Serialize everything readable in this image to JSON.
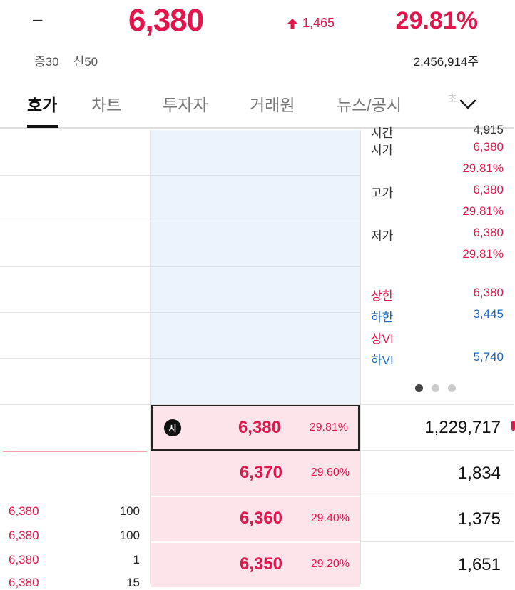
{
  "header": {
    "name": "–",
    "price": "6,380",
    "change": "1,465",
    "change_rate": "29.81%",
    "tags": [
      "증30",
      "신50"
    ],
    "volume": "2,456,914주",
    "accent_color": "#e0174c"
  },
  "tabs": [
    {
      "label": "호가",
      "active": true
    },
    {
      "label": "차트",
      "active": false
    },
    {
      "label": "투자자",
      "active": false
    },
    {
      "label": "거래원",
      "active": false
    },
    {
      "label": "뉴스/공시",
      "active": false
    }
  ],
  "tab_partial": "초",
  "info": {
    "cut_row": {
      "label": "시간",
      "value": "4,915"
    },
    "rows": [
      {
        "label": "시가",
        "value": "6,380",
        "rate": "29.81%"
      },
      {
        "label": "고가",
        "value": "6,380",
        "rate": "29.81%"
      },
      {
        "label": "저가",
        "value": "6,380",
        "rate": "29.81%"
      }
    ],
    "limits": [
      {
        "label": "상한",
        "value": "6,380"
      },
      {
        "label": "하한",
        "value": "3,445"
      },
      {
        "label": "상VI",
        "value": ""
      },
      {
        "label": "하VI",
        "value": "5,740"
      }
    ],
    "page_dots": 3,
    "active_dot": 0
  },
  "bids": [
    {
      "price": "6,380",
      "rate": "29.81%",
      "qty": "1,229,717",
      "badge": "시",
      "current": true
    },
    {
      "price": "6,370",
      "rate": "29.60%",
      "qty": "1,834"
    },
    {
      "price": "6,360",
      "rate": "29.40%",
      "qty": "1,375"
    },
    {
      "price": "6,350",
      "rate": "29.20%",
      "qty": "1,651"
    }
  ],
  "trades": [
    {
      "price": "6,380",
      "qty": "100"
    },
    {
      "price": "6,380",
      "qty": "100"
    },
    {
      "price": "6,380",
      "qty": "1"
    },
    {
      "price": "6,380",
      "qty": "15"
    }
  ]
}
